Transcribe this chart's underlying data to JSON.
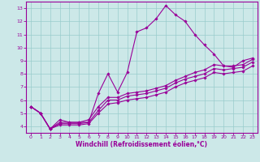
{
  "background_color": "#cce8e8",
  "grid_color": "#99cccc",
  "line_color": "#990099",
  "spine_color": "#990099",
  "xlabel": "Windchill (Refroidissement éolien,°C)",
  "xlim": [
    -0.5,
    23.5
  ],
  "ylim": [
    3.5,
    13.5
  ],
  "yticks": [
    4,
    5,
    6,
    7,
    8,
    9,
    10,
    11,
    12,
    13
  ],
  "xticks": [
    0,
    1,
    2,
    3,
    4,
    5,
    6,
    7,
    8,
    9,
    10,
    11,
    12,
    13,
    14,
    15,
    16,
    17,
    18,
    19,
    20,
    21,
    22,
    23
  ],
  "lines": [
    {
      "x": [
        0,
        1,
        2,
        3,
        4,
        5,
        6,
        7,
        8,
        9,
        10,
        11,
        12,
        13,
        14,
        15,
        16,
        17,
        18,
        19,
        20,
        21,
        22,
        23
      ],
      "y": [
        5.5,
        5.0,
        3.8,
        4.5,
        4.3,
        4.3,
        4.3,
        6.5,
        8.0,
        6.6,
        8.1,
        11.2,
        11.5,
        12.2,
        13.2,
        12.5,
        12.0,
        11.0,
        10.2,
        9.5,
        8.6,
        8.5,
        9.0,
        9.2
      ]
    },
    {
      "x": [
        0,
        1,
        2,
        3,
        4,
        5,
        6,
        7,
        8,
        9,
        10,
        11,
        12,
        13,
        14,
        15,
        16,
        17,
        18,
        19,
        20,
        21,
        22,
        23
      ],
      "y": [
        5.5,
        5.0,
        3.8,
        4.3,
        4.3,
        4.3,
        4.5,
        5.5,
        6.2,
        6.2,
        6.5,
        6.6,
        6.7,
        6.9,
        7.1,
        7.5,
        7.8,
        8.1,
        8.3,
        8.7,
        8.6,
        8.6,
        8.7,
        9.1
      ]
    },
    {
      "x": [
        0,
        1,
        2,
        3,
        4,
        5,
        6,
        7,
        8,
        9,
        10,
        11,
        12,
        13,
        14,
        15,
        16,
        17,
        18,
        19,
        20,
        21,
        22,
        23
      ],
      "y": [
        5.5,
        5.0,
        3.8,
        4.2,
        4.2,
        4.2,
        4.3,
        5.2,
        6.0,
        6.0,
        6.3,
        6.4,
        6.5,
        6.7,
        6.9,
        7.3,
        7.6,
        7.8,
        8.0,
        8.4,
        8.3,
        8.4,
        8.5,
        8.9
      ]
    },
    {
      "x": [
        0,
        1,
        2,
        3,
        4,
        5,
        6,
        7,
        8,
        9,
        10,
        11,
        12,
        13,
        14,
        15,
        16,
        17,
        18,
        19,
        20,
        21,
        22,
        23
      ],
      "y": [
        5.5,
        5.0,
        3.8,
        4.1,
        4.1,
        4.1,
        4.2,
        5.0,
        5.7,
        5.8,
        6.0,
        6.1,
        6.2,
        6.4,
        6.6,
        7.0,
        7.3,
        7.5,
        7.7,
        8.1,
        8.0,
        8.1,
        8.2,
        8.6
      ]
    }
  ],
  "marker": "D",
  "markersize": 1.8,
  "linewidth": 0.8,
  "tick_fontsize": 4.5,
  "xlabel_fontsize": 5.5
}
